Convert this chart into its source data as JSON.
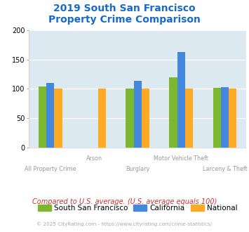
{
  "title_line1": "2019 South San Francisco",
  "title_line2": "Property Crime Comparison",
  "title_color": "#1a6acc",
  "categories": [
    "All Property Crime",
    "Arson",
    "Burglary",
    "Motor Vehicle Theft",
    "Larceny & Theft"
  ],
  "series": {
    "South San Francisco": [
      104,
      0,
      100,
      120,
      102
    ],
    "California": [
      110,
      0,
      113,
      163,
      103
    ],
    "National": [
      100,
      100,
      100,
      100,
      100
    ]
  },
  "colors": {
    "South San Francisco": "#7cb82f",
    "California": "#4488dd",
    "National": "#ffaa22"
  },
  "ylim": [
    0,
    200
  ],
  "yticks": [
    0,
    50,
    100,
    150,
    200
  ],
  "background_color": "#dce9f0",
  "grid_color": "#ffffff",
  "note": "Compared to U.S. average. (U.S. average equals 100)",
  "note_color": "#cc3333",
  "copyright_prefix": "© 2025 CityRating.com - ",
  "copyright_link": "https://www.cityrating.com/crime-statistics/",
  "copyright_color": "#aaaaaa",
  "copyright_link_color": "#4488dd",
  "xlabel_color": "#999999",
  "bar_width": 0.18,
  "row1_labels": [
    0,
    2,
    4
  ],
  "row2_labels": [
    1,
    3
  ]
}
